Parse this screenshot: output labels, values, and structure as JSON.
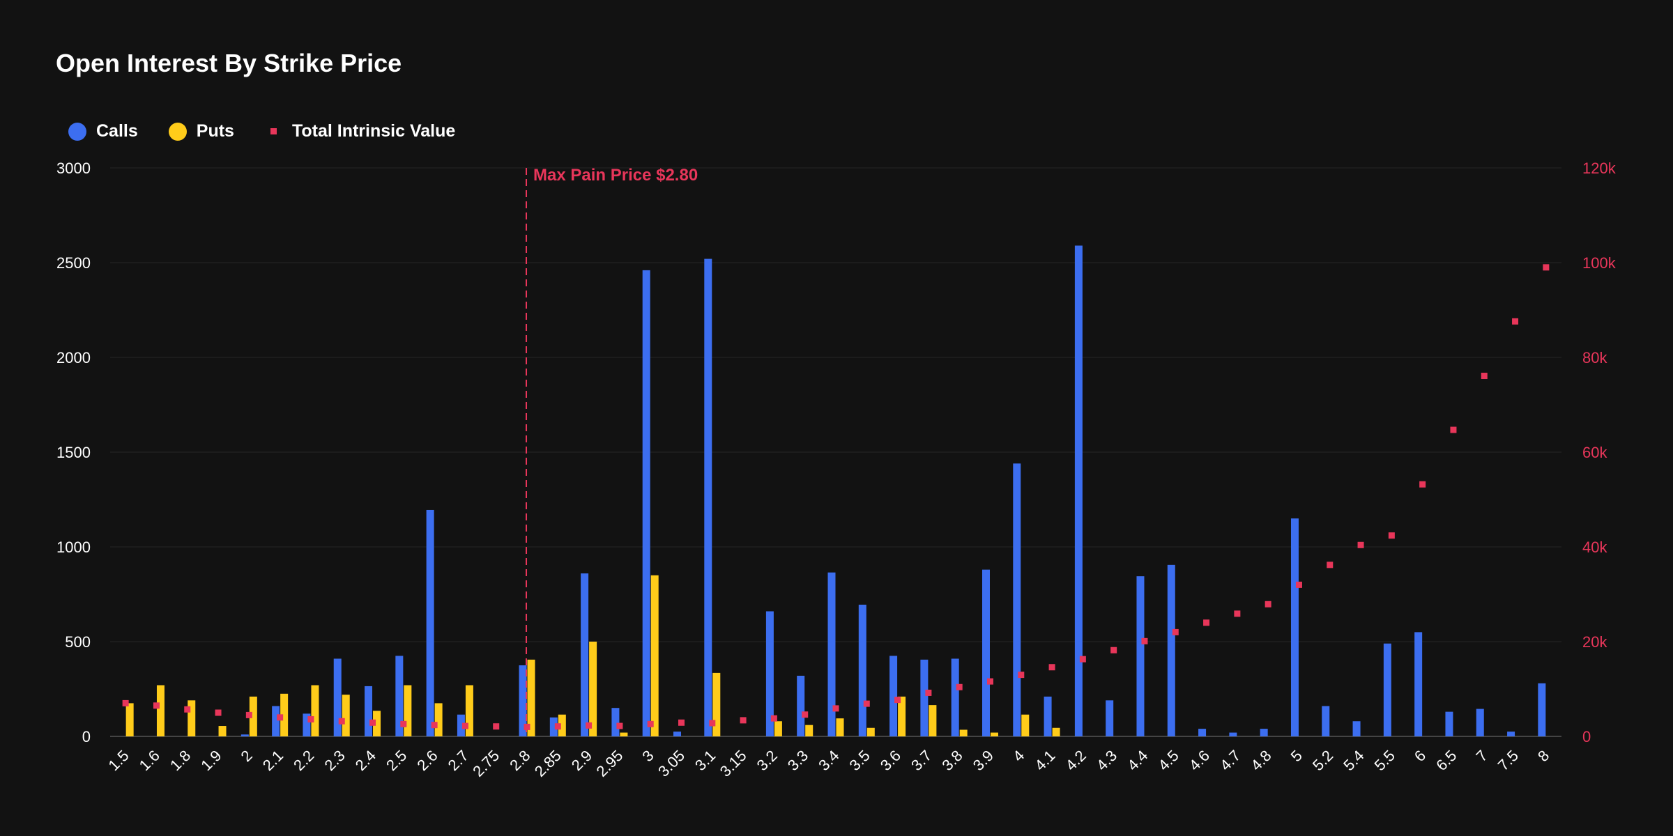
{
  "title": "Open Interest By Strike Price",
  "legend": {
    "calls": "Calls",
    "puts": "Puts",
    "intrinsic": "Total Intrinsic Value"
  },
  "colors": {
    "calls": "#3C6EF0",
    "puts": "#FFCC1A",
    "intrinsic": "#E8365A",
    "grid": "#262626",
    "background": "#121212"
  },
  "annotation": {
    "label": "Max Pain Price $2.80",
    "strike": "2.8"
  },
  "chart_data": {
    "type": "bar",
    "title": "Open Interest By Strike Price",
    "xlabel": "",
    "ylabel": "",
    "categories": [
      "1.5",
      "1.6",
      "1.8",
      "1.9",
      "2",
      "2.1",
      "2.2",
      "2.3",
      "2.4",
      "2.5",
      "2.6",
      "2.7",
      "2.75",
      "2.8",
      "2.85",
      "2.9",
      "2.95",
      "3",
      "3.05",
      "3.1",
      "3.15",
      "3.2",
      "3.3",
      "3.4",
      "3.5",
      "3.6",
      "3.7",
      "3.8",
      "3.9",
      "4",
      "4.1",
      "4.2",
      "4.3",
      "4.4",
      "4.5",
      "4.6",
      "4.7",
      "4.8",
      "5",
      "5.2",
      "5.4",
      "5.5",
      "6",
      "6.5",
      "7",
      "7.5",
      "8"
    ],
    "series": [
      {
        "name": "Calls",
        "axis": "left",
        "values": [
          0,
          0,
          0,
          0,
          10,
          160,
          120,
          410,
          265,
          425,
          1195,
          115,
          0,
          375,
          100,
          860,
          150,
          2460,
          25,
          2520,
          0,
          660,
          320,
          865,
          695,
          425,
          405,
          410,
          880,
          1440,
          210,
          2590,
          190,
          845,
          905,
          40,
          20,
          40,
          1150,
          160,
          80,
          490,
          550,
          130,
          145,
          25,
          280
        ]
      },
      {
        "name": "Puts",
        "axis": "left",
        "values": [
          175,
          270,
          190,
          55,
          210,
          225,
          270,
          220,
          135,
          270,
          175,
          270,
          0,
          405,
          115,
          500,
          20,
          850,
          0,
          335,
          0,
          80,
          60,
          95,
          45,
          210,
          165,
          35,
          20,
          115,
          45,
          0,
          0,
          0,
          0,
          0,
          0,
          0,
          0,
          0,
          0,
          0,
          0,
          0,
          0,
          0,
          0
        ]
      },
      {
        "name": "Total Intrinsic Value",
        "axis": "right",
        "type": "scatter",
        "values": [
          7000,
          6500,
          5700,
          5000,
          4500,
          4000,
          3600,
          3200,
          2900,
          2600,
          2400,
          2200,
          2100,
          2000,
          2100,
          2300,
          2200,
          2600,
          2900,
          2800,
          3400,
          3800,
          4600,
          5900,
          6900,
          7700,
          9200,
          10400,
          11600,
          13000,
          14600,
          16300,
          18200,
          20100,
          22000,
          24000,
          25900,
          27900,
          32000,
          36200,
          40400,
          42400,
          53200,
          64700,
          76100,
          87600,
          99000
        ]
      }
    ],
    "y_left": {
      "range": [
        0,
        3000
      ],
      "ticks": [
        "0",
        "500",
        "1000",
        "1500",
        "2000",
        "2500",
        "3000"
      ]
    },
    "y_right": {
      "range": [
        0,
        120000
      ],
      "ticks": [
        "0",
        "20k",
        "40k",
        "60k",
        "80k",
        "100k",
        "120k"
      ]
    },
    "grid": true,
    "legend_position": "top-left"
  }
}
